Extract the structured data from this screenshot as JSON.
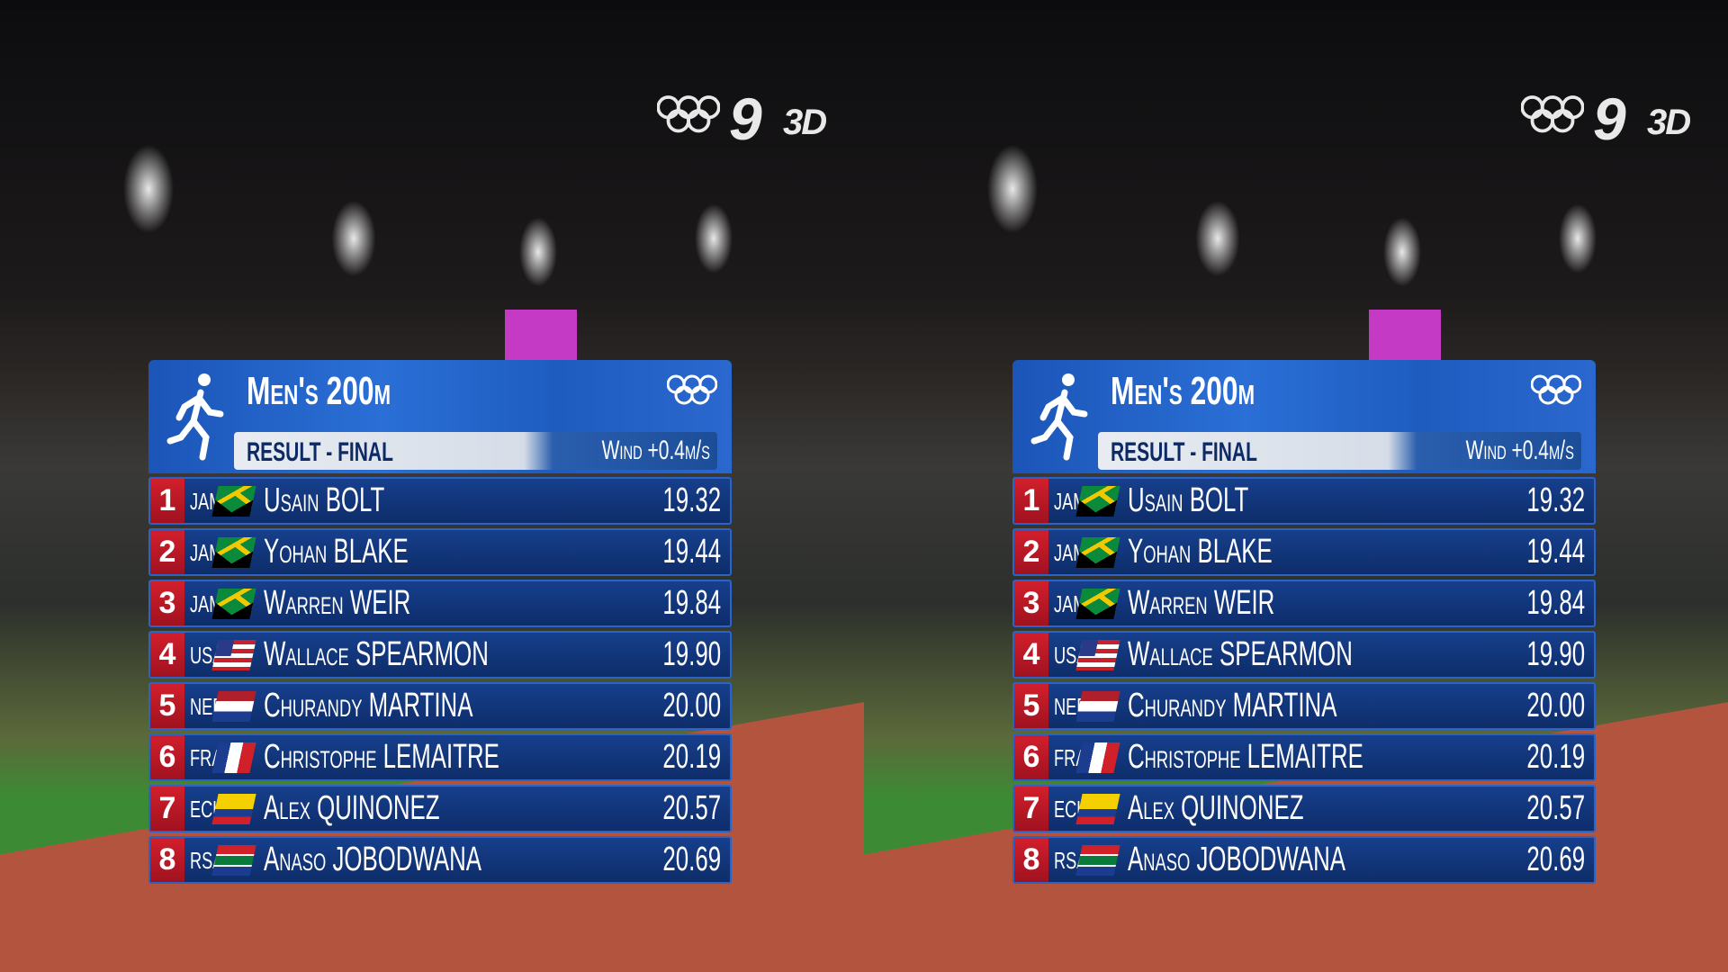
{
  "broadcast": {
    "channel": "9",
    "format": "3D"
  },
  "scoreboard": {
    "title": "Men's 200m",
    "subtitle": "Result - Final",
    "wind": "Wind +0.4m/s",
    "rows": [
      {
        "rank": 1,
        "country": "JAM",
        "name": "Usain BOLT",
        "time": "19.32"
      },
      {
        "rank": 2,
        "country": "JAM",
        "name": "Yohan BLAKE",
        "time": "19.44"
      },
      {
        "rank": 3,
        "country": "JAM",
        "name": "Warren WEIR",
        "time": "19.84"
      },
      {
        "rank": 4,
        "country": "USA",
        "name": "Wallace SPEARMON",
        "time": "19.90"
      },
      {
        "rank": 5,
        "country": "NED",
        "name": "Churandy MARTINA",
        "time": "20.00"
      },
      {
        "rank": 6,
        "country": "FRA",
        "name": "Christophe LEMAITRE",
        "time": "20.19"
      },
      {
        "rank": 7,
        "country": "ECU",
        "name": "Alex QUINONEZ",
        "time": "20.57"
      },
      {
        "rank": 8,
        "country": "RSA",
        "name": "Anaso JOBODWANA",
        "time": "20.69"
      }
    ]
  }
}
